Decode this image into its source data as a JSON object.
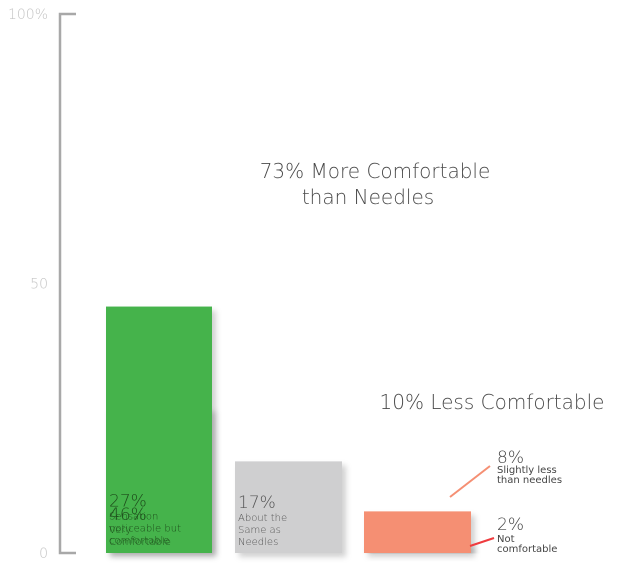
{
  "chart_data": {
    "type": "bar",
    "stacked": true,
    "ylim": [
      0,
      100
    ],
    "yticks": [
      {
        "value": 0,
        "label": "0"
      },
      {
        "value": 50,
        "label": "50"
      },
      {
        "value": 100,
        "label": "100%"
      }
    ],
    "grid": false,
    "legend": "none",
    "groups": [
      {
        "title_lines": [
          "73% More Comfortable",
          "than Needles"
        ],
        "segments": [
          {
            "value": 27,
            "pct_label": "27%",
            "desc_lines": [
              "Sensation",
              "noticeable but",
              "comfortable"
            ],
            "color": "#63bb5b",
            "text_color": "#1e4d1b"
          },
          {
            "value": 46,
            "pct_label": "46%",
            "desc_lines": [
              "Very",
              "Comfortable"
            ],
            "color": "#44b34b",
            "text_color": "#1e4d1b"
          }
        ]
      },
      {
        "title_lines": [],
        "segments": [
          {
            "value": 17,
            "pct_label": "17%",
            "desc_lines": [
              "About the",
              "Same as",
              "Needles"
            ],
            "color": "#cfcfd0",
            "text_color": "#555555"
          }
        ]
      },
      {
        "title_lines": [
          "10% Less Comfortable"
        ],
        "segments": [
          {
            "value": 2,
            "pct_label": "2%",
            "desc_lines": [
              "Not",
              "comfortable"
            ],
            "color": "#ef3b3e",
            "text_color": "#444444",
            "callout": true
          },
          {
            "value": 8,
            "pct_label": "8%",
            "desc_lines": [
              "Slightly less",
              "than needles"
            ],
            "color": "#f58f73",
            "text_color": "#444444",
            "callout": true
          }
        ]
      }
    ]
  }
}
